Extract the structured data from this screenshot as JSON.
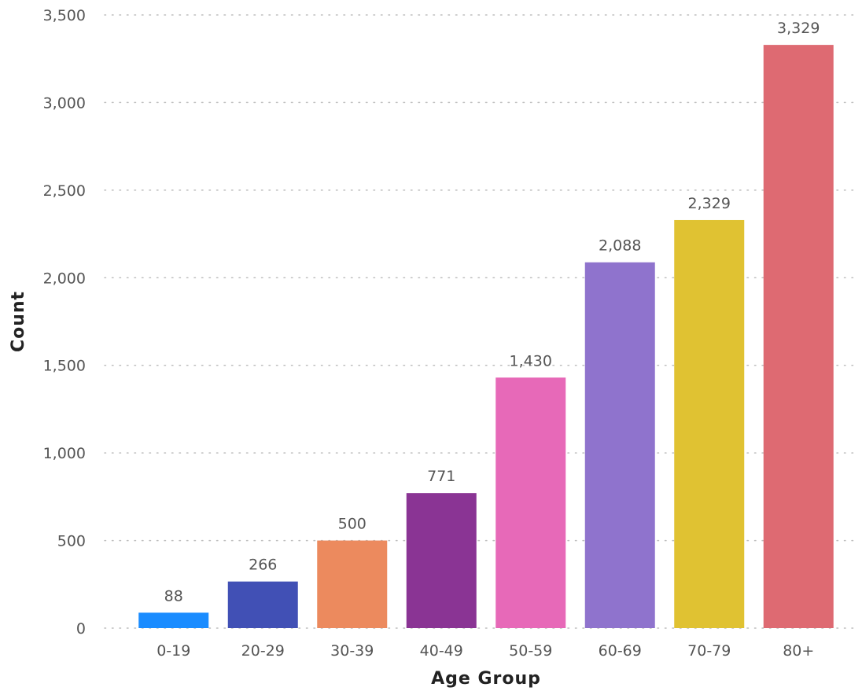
{
  "chart_data": {
    "type": "bar",
    "title": "",
    "xlabel": "Age Group",
    "ylabel": "Count",
    "categories": [
      "0-19",
      "20-29",
      "30-39",
      "40-49",
      "50-59",
      "60-69",
      "70-79",
      "80+"
    ],
    "values": [
      88,
      266,
      500,
      771,
      1430,
      2088,
      2329,
      3329
    ],
    "value_labels": [
      "88",
      "266",
      "500",
      "771",
      "1,430",
      "2,088",
      "2,329",
      "3,329"
    ],
    "colors": [
      "#1a8cff",
      "#4150b5",
      "#ec8a5e",
      "#8a3494",
      "#e769b8",
      "#8f73cd",
      "#e0c232",
      "#de6a72"
    ],
    "ylim": [
      0,
      3500
    ],
    "yticks": [
      0,
      500,
      1000,
      1500,
      2000,
      2500,
      3000,
      3500
    ],
    "ytick_labels": [
      "0",
      "500",
      "1,000",
      "1,500",
      "2,000",
      "2,500",
      "3,000",
      "3,500"
    ],
    "grid": true,
    "grid_color": "#bdbdbd",
    "legend": false
  }
}
